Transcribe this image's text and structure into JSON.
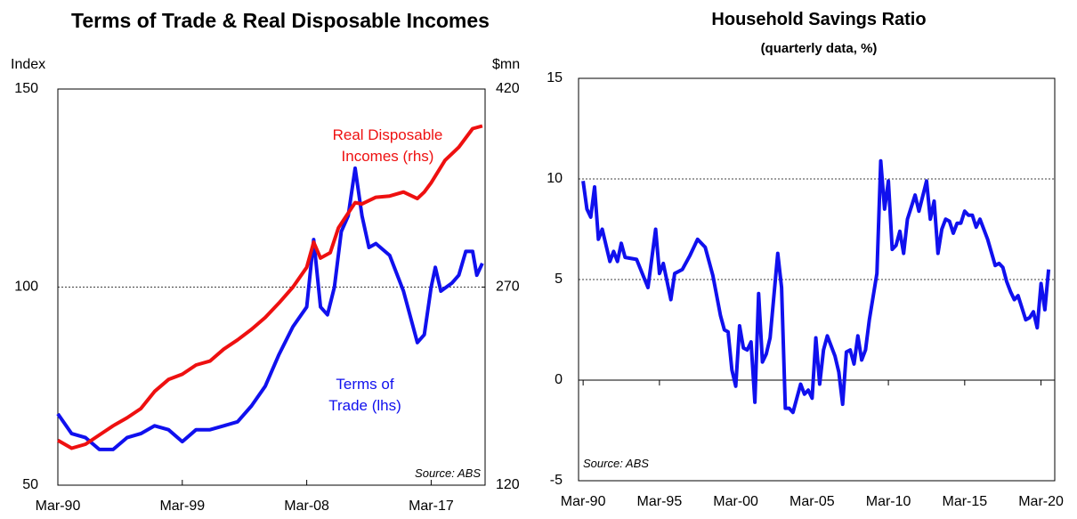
{
  "chart_data": [
    {
      "type": "line",
      "title": "Terms of Trade & Real Disposable Incomes",
      "ylabel": "Index",
      "y2label": "$mn",
      "annotations": [
        "Real Disposable Incomes (rhs)",
        "Terms of Trade (lhs)"
      ],
      "source": "Source: ABS",
      "xlim": [
        1990,
        2020.9
      ],
      "xticks": [
        {
          "value": 1990,
          "label": "Mar-90"
        },
        {
          "value": 1999,
          "label": "Mar-99"
        },
        {
          "value": 2008,
          "label": "Mar-08"
        },
        {
          "value": 2017,
          "label": "Mar-17"
        }
      ],
      "ylim": [
        50,
        150
      ],
      "yticks": [
        50,
        100,
        150
      ],
      "y2lim": [
        120,
        420
      ],
      "y2ticks": [
        120,
        270,
        420
      ],
      "grid": true,
      "series": [
        {
          "name": "Terms of Trade (lhs)",
          "color": "#1010ee",
          "axis": "y",
          "x": [
            1990,
            1991,
            1992,
            1993,
            1994,
            1995,
            1996,
            1997,
            1998,
            1999,
            2000,
            2001,
            2002,
            2003,
            2004,
            2005,
            2006,
            2007,
            2008,
            2008.5,
            2009,
            2009.5,
            2010,
            2010.5,
            2011,
            2011.5,
            2012,
            2012.5,
            2013,
            2014,
            2015,
            2016,
            2016.5,
            2017,
            2017.3,
            2017.7,
            2018.5,
            2019,
            2019.5,
            2020,
            2020.3,
            2020.7
          ],
          "values": [
            68,
            63,
            62,
            59,
            59,
            62,
            63,
            65,
            64,
            61,
            64,
            64,
            65,
            66,
            70,
            75,
            83,
            90,
            95,
            112,
            95,
            93,
            100,
            114,
            118,
            130,
            118,
            110,
            111,
            108,
            99,
            86,
            88,
            100,
            105,
            99,
            101,
            103,
            109,
            109,
            103,
            106
          ]
        },
        {
          "name": "Real Disposable Incomes (rhs)",
          "color": "#ee1010",
          "axis": "y2",
          "x": [
            1990,
            1991,
            1992,
            1993,
            1994,
            1995,
            1996,
            1997,
            1998,
            1999,
            2000,
            2001,
            2002,
            2003,
            2004,
            2005,
            2006,
            2007,
            2008,
            2008.5,
            2009,
            2009.7,
            2010.3,
            2011,
            2011.5,
            2012,
            2013,
            2014,
            2015,
            2016,
            2016.5,
            2017,
            2018,
            2019,
            2020,
            2020.7
          ],
          "values": [
            154,
            148,
            151,
            158,
            165,
            171,
            178,
            191,
            200,
            204,
            211,
            214,
            223,
            230,
            238,
            247,
            258,
            270,
            285,
            304,
            292,
            296,
            315,
            326,
            334,
            333,
            338,
            339,
            342,
            337,
            342,
            349,
            366,
            376,
            390,
            392
          ]
        }
      ]
    },
    {
      "type": "line",
      "title": "Household Savings Ratio",
      "subtitle": "(quarterly data, %)",
      "source": "Source: ABS",
      "xlim": [
        1989.7,
        2020.9
      ],
      "xticks": [
        {
          "value": 1990,
          "label": "Mar-90"
        },
        {
          "value": 1995,
          "label": "Mar-95"
        },
        {
          "value": 2000,
          "label": "Mar-00"
        },
        {
          "value": 2005,
          "label": "Mar-05"
        },
        {
          "value": 2010,
          "label": "Mar-10"
        },
        {
          "value": 2015,
          "label": "Mar-15"
        },
        {
          "value": 2020,
          "label": "Mar-20"
        }
      ],
      "ylim": [
        -5,
        15
      ],
      "yticks": [
        -5,
        0,
        5,
        10,
        15
      ],
      "grid": true,
      "series": [
        {
          "name": "Household Savings Ratio",
          "color": "#1010ee",
          "axis": "y",
          "x": [
            1990,
            1990.25,
            1990.5,
            1990.75,
            1991,
            1991.25,
            1991.75,
            1992,
            1992.25,
            1992.5,
            1992.75,
            1993.5,
            1994.25,
            1994.75,
            1995,
            1995.25,
            1995.75,
            1996,
            1996.5,
            1997,
            1997.5,
            1998,
            1998.5,
            1999,
            1999.25,
            1999.5,
            1999.75,
            2000,
            2000.25,
            2000.5,
            2000.75,
            2001,
            2001.25,
            2001.5,
            2001.75,
            2002,
            2002.25,
            2002.75,
            2003,
            2003.25,
            2003.5,
            2003.75,
            2004.25,
            2004.5,
            2004.75,
            2005,
            2005.25,
            2005.5,
            2005.75,
            2006,
            2006.5,
            2006.75,
            2007,
            2007.25,
            2007.5,
            2007.75,
            2008,
            2008.25,
            2008.5,
            2008.75,
            2009.25,
            2009.5,
            2009.75,
            2010,
            2010.25,
            2010.5,
            2010.75,
            2011,
            2011.25,
            2011.75,
            2012,
            2012.5,
            2012.75,
            2013,
            2013.25,
            2013.5,
            2013.75,
            2014,
            2014.25,
            2014.5,
            2014.75,
            2015,
            2015.25,
            2015.5,
            2015.75,
            2016,
            2016.5,
            2017,
            2017.25,
            2017.5,
            2017.75,
            2018,
            2018.25,
            2018.5,
            2019,
            2019.25,
            2019.5,
            2019.75,
            2020,
            2020.25,
            2020.5
          ],
          "values": [
            9.9,
            8.5,
            8.1,
            9.6,
            7.0,
            7.5,
            5.9,
            6.4,
            5.9,
            6.8,
            6.1,
            6.0,
            4.6,
            7.5,
            5.3,
            5.8,
            4.0,
            5.3,
            5.5,
            6.2,
            7.0,
            6.6,
            5.2,
            3.2,
            2.5,
            2.4,
            0.5,
            -0.3,
            2.7,
            1.6,
            1.5,
            1.9,
            -1.1,
            4.3,
            0.9,
            1.3,
            2.1,
            6.3,
            4.6,
            -1.4,
            -1.4,
            -1.6,
            -0.2,
            -0.7,
            -0.5,
            -0.9,
            2.1,
            -0.2,
            1.5,
            2.2,
            1.2,
            0.4,
            -1.2,
            1.4,
            1.5,
            0.8,
            2.2,
            1.0,
            1.5,
            3.0,
            5.3,
            10.9,
            8.5,
            9.9,
            6.5,
            6.7,
            7.4,
            6.3,
            8.0,
            9.2,
            8.4,
            9.9,
            8.0,
            8.9,
            6.3,
            7.5,
            8.0,
            7.9,
            7.3,
            7.8,
            7.8,
            8.4,
            8.2,
            8.2,
            7.6,
            8.0,
            7.0,
            5.7,
            5.8,
            5.6,
            4.9,
            4.4,
            4.0,
            4.2,
            3.0,
            3.1,
            3.4,
            2.6,
            4.8,
            3.5,
            5.5
          ]
        }
      ]
    }
  ]
}
